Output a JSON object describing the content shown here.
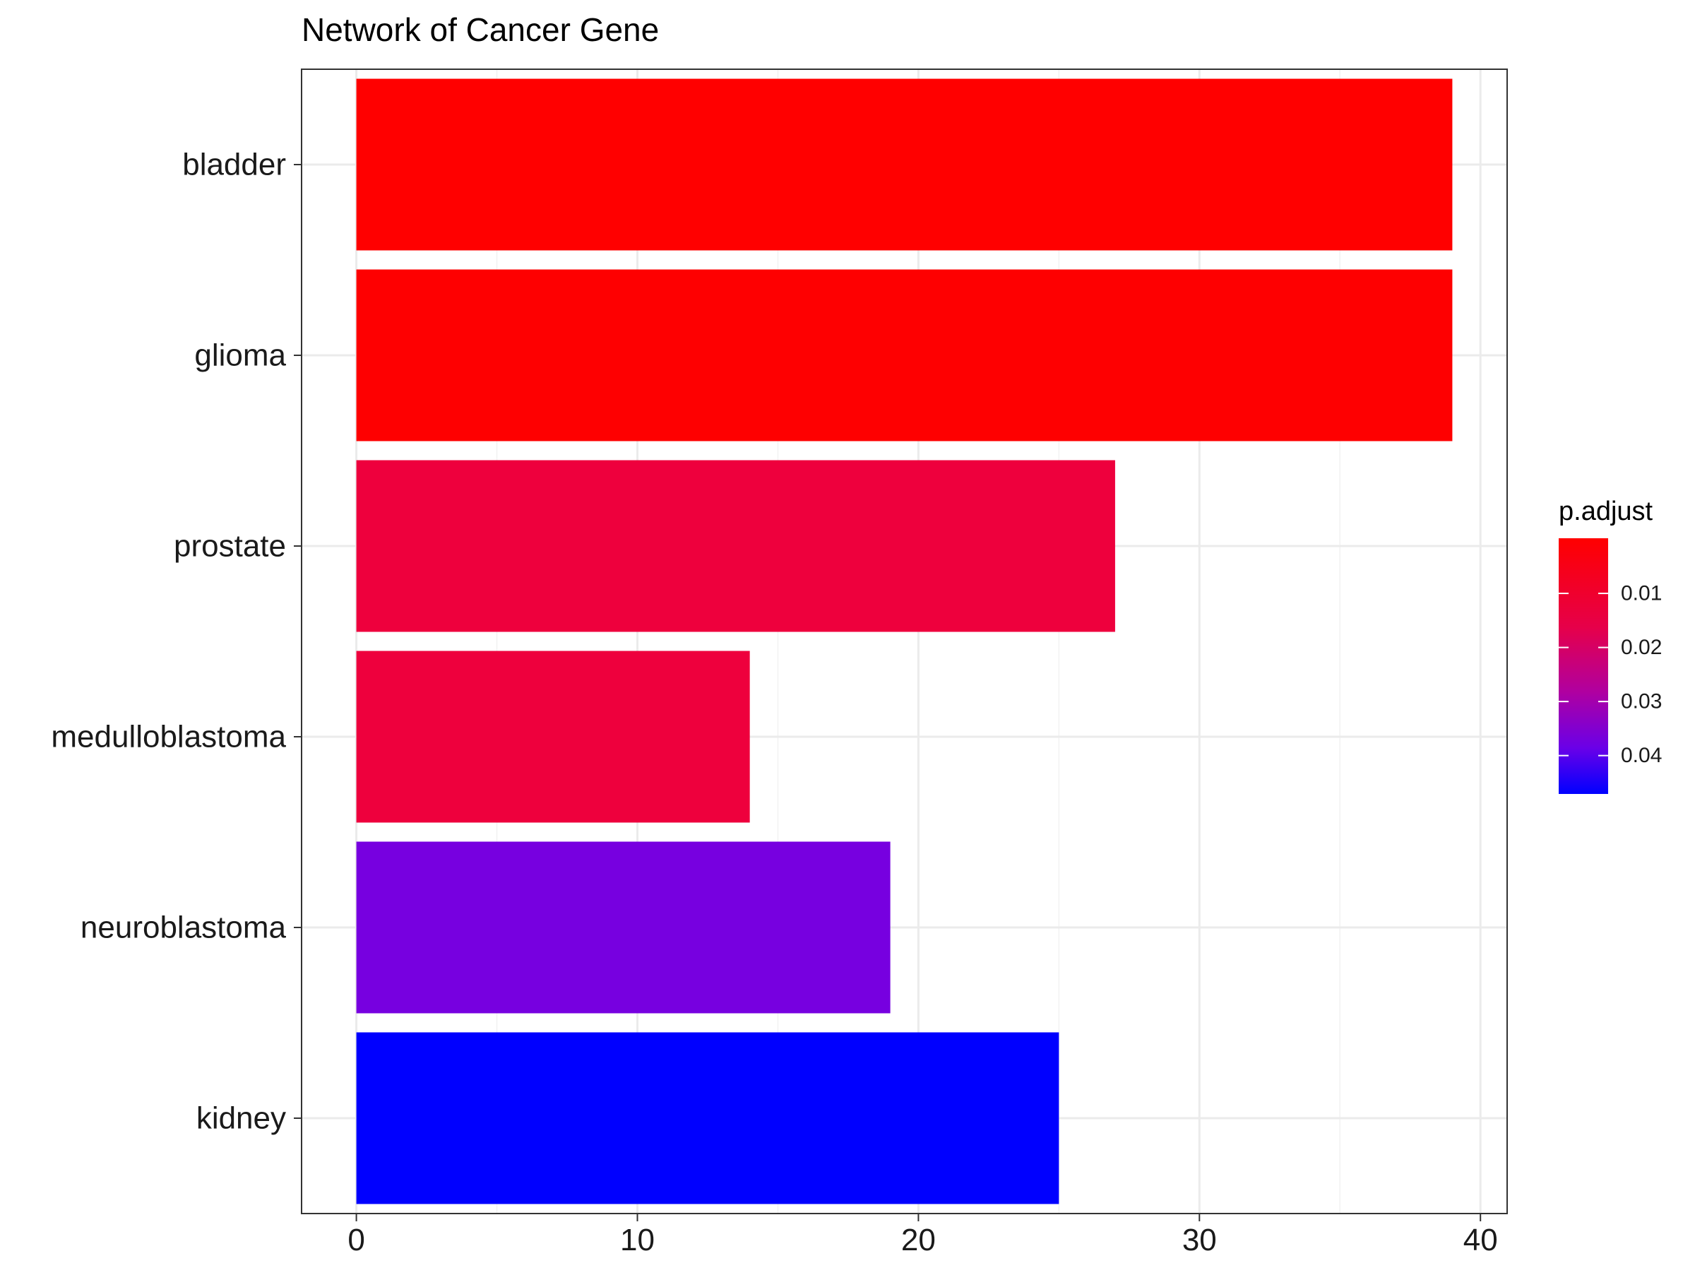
{
  "chart_data": {
    "type": "bar",
    "orientation": "horizontal",
    "title": "Network of Cancer Gene",
    "xlabel": "",
    "ylabel": "",
    "categories": [
      "bladder",
      "glioma",
      "prostate",
      "medulloblastoma",
      "neuroblastoma",
      "kidney"
    ],
    "values": [
      39,
      39,
      27,
      14,
      19,
      25
    ],
    "bar_colors": [
      "#ff0000",
      "#fe0001",
      "#ee003d",
      "#ee003d",
      "#7700e0",
      "#0000ff"
    ],
    "x_ticks": [
      0,
      10,
      20,
      30,
      40
    ],
    "xlim": [
      -1.95,
      40.95
    ],
    "grid": true,
    "legend": {
      "title": "p.adjust",
      "placement": "right",
      "type": "colorbar",
      "ticks": [
        "0.01",
        "0.02",
        "0.03",
        "0.04"
      ],
      "tick_values": [
        0.01,
        0.02,
        0.03,
        0.04
      ],
      "range": [
        0.0471,
        -0.0002
      ],
      "low_color": "#ff0000",
      "high_color": "#0000ff"
    }
  }
}
